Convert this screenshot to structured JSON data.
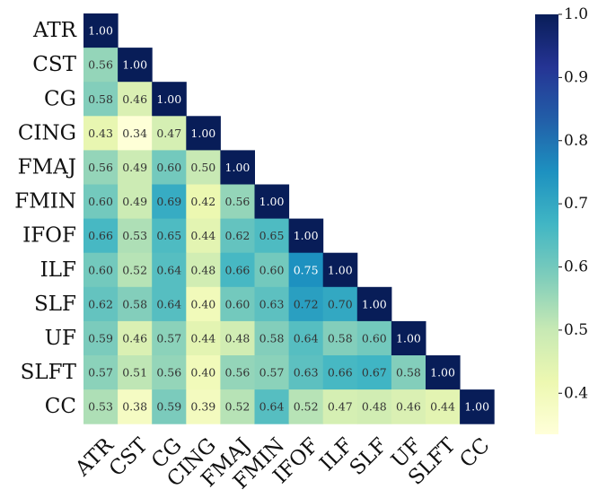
{
  "chart_data": {
    "type": "heatmap",
    "title": "",
    "xlabel": "",
    "ylabel": "",
    "labels": [
      "ATR",
      "CST",
      "CG",
      "CING",
      "FMAJ",
      "FMIN",
      "IFOF",
      "ILF",
      "SLF",
      "UF",
      "SLFT",
      "CC"
    ],
    "matrix": [
      [
        1.0
      ],
      [
        0.56,
        1.0
      ],
      [
        0.58,
        0.46,
        1.0
      ],
      [
        0.43,
        0.34,
        0.47,
        1.0
      ],
      [
        0.56,
        0.49,
        0.6,
        0.5,
        1.0
      ],
      [
        0.6,
        0.49,
        0.69,
        0.42,
        0.56,
        1.0
      ],
      [
        0.66,
        0.53,
        0.65,
        0.44,
        0.62,
        0.65,
        1.0
      ],
      [
        0.6,
        0.52,
        0.64,
        0.48,
        0.66,
        0.6,
        0.75,
        1.0
      ],
      [
        0.62,
        0.58,
        0.64,
        0.4,
        0.6,
        0.63,
        0.72,
        0.7,
        1.0
      ],
      [
        0.59,
        0.46,
        0.57,
        0.44,
        0.48,
        0.58,
        0.64,
        0.58,
        0.6,
        1.0
      ],
      [
        0.57,
        0.51,
        0.56,
        0.4,
        0.56,
        0.57,
        0.63,
        0.66,
        0.67,
        0.58,
        1.0
      ],
      [
        0.53,
        0.38,
        0.59,
        0.39,
        0.52,
        0.64,
        0.52,
        0.47,
        0.48,
        0.46,
        0.44,
        1.0
      ]
    ],
    "value_format": "0.00",
    "colorbar": {
      "colormap": "YlGnBu",
      "range": [
        0.335,
        1.0
      ],
      "ticks": [
        "0.4",
        "0.5",
        "0.6",
        "0.7",
        "0.8",
        "0.9",
        "1.0"
      ],
      "tick_values": [
        0.4,
        0.5,
        0.6,
        0.7,
        0.8,
        0.9,
        1.0
      ]
    },
    "lower_triangle": true,
    "grid": false,
    "legend": "colorbar-right"
  }
}
